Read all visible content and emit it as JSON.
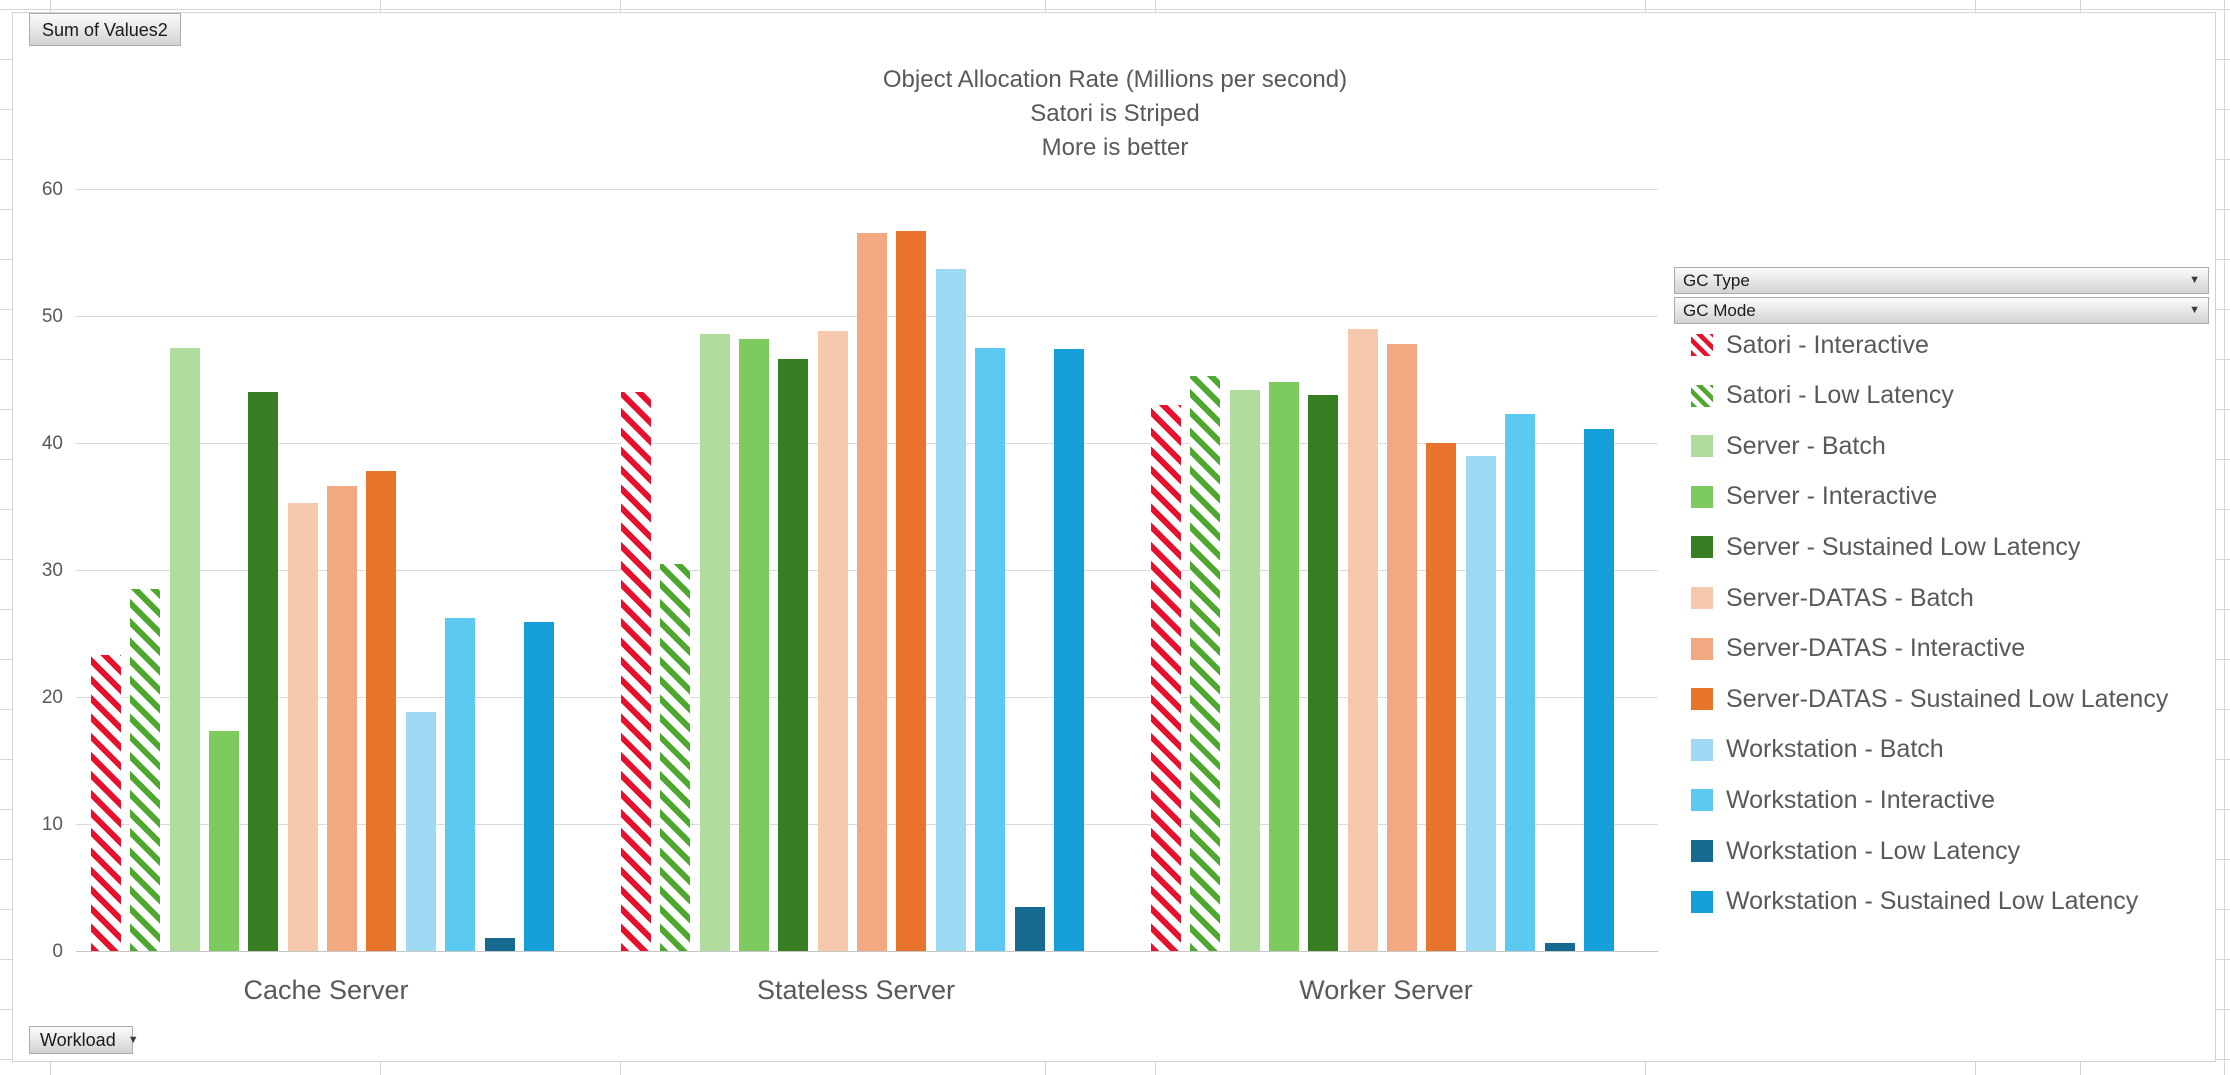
{
  "pivot_fields": {
    "values_button": "Sum of Values2",
    "axis_button": "Workload",
    "legend_buttons": [
      "GC Type",
      "GC Mode"
    ]
  },
  "chart_data": {
    "type": "bar",
    "title_lines": [
      "Object Allocation Rate (Millions per second)",
      "Satori is Striped",
      "More is better"
    ],
    "xlabel": "",
    "ylabel": "",
    "ylim": [
      0,
      60
    ],
    "yticks": [
      0,
      10,
      20,
      30,
      40,
      50,
      60
    ],
    "grid": true,
    "legend_position": "right",
    "categories": [
      "Cache Server",
      "Stateless Server",
      "Worker Server"
    ],
    "series": [
      {
        "name": "Satori - Interactive",
        "color": "#e8112d",
        "striped": true,
        "values": [
          23.3,
          44.0,
          43.0
        ]
      },
      {
        "name": "Satori - Low Latency",
        "color": "#4ea72e",
        "striped": true,
        "values": [
          28.5,
          30.5,
          45.3
        ]
      },
      {
        "name": "Server - Batch",
        "color": "#b0dd9d",
        "striped": false,
        "values": [
          47.5,
          48.6,
          44.2
        ]
      },
      {
        "name": "Server - Interactive",
        "color": "#7dca5f",
        "striped": false,
        "values": [
          17.3,
          48.2,
          44.8
        ]
      },
      {
        "name": "Server - Sustained Low Latency",
        "color": "#377d22",
        "striped": false,
        "values": [
          44.0,
          46.6,
          43.8
        ]
      },
      {
        "name": "Server-DATAS - Batch",
        "color": "#f6c9ae",
        "striped": false,
        "values": [
          35.3,
          48.8,
          49.0
        ]
      },
      {
        "name": "Server-DATAS - Interactive",
        "color": "#f2a981",
        "striped": false,
        "values": [
          36.6,
          56.5,
          47.8
        ]
      },
      {
        "name": "Server-DATAS - Sustained Low Latency",
        "color": "#e8742c",
        "striped": false,
        "values": [
          37.8,
          56.7,
          40.0
        ]
      },
      {
        "name": "Workstation - Batch",
        "color": "#9fdaf4",
        "striped": false,
        "values": [
          18.8,
          53.7,
          39.0
        ]
      },
      {
        "name": "Workstation - Interactive",
        "color": "#5bc9f0",
        "striped": false,
        "values": [
          26.2,
          47.5,
          42.3
        ]
      },
      {
        "name": "Workstation - Low Latency",
        "color": "#166a8f",
        "striped": false,
        "values": [
          1.0,
          3.5,
          0.6
        ]
      },
      {
        "name": "Workstation - Sustained Low Latency",
        "color": "#149fd8",
        "striped": false,
        "values": [
          25.9,
          47.4,
          41.1
        ]
      }
    ]
  }
}
